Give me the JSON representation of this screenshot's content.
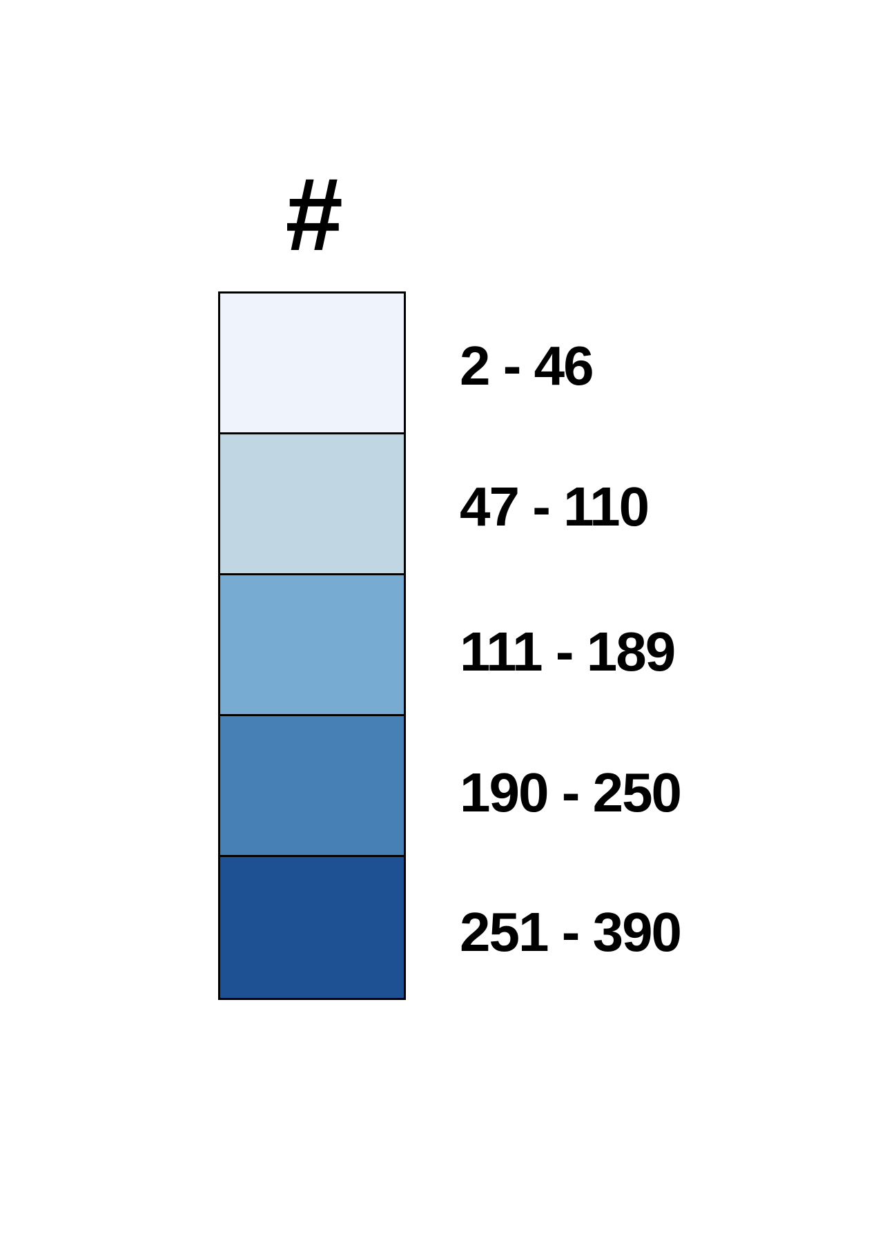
{
  "legend": {
    "title": "#",
    "classes": [
      {
        "label": "2 - 46",
        "color": "#eef3fc"
      },
      {
        "label": "47 - 110",
        "color": "#c0d6e3"
      },
      {
        "label": "111 - 189",
        "color": "#78abd1"
      },
      {
        "label": "190 - 250",
        "color": "#4680b5"
      },
      {
        "label": "251 - 390",
        "color": "#1d5193"
      }
    ]
  }
}
